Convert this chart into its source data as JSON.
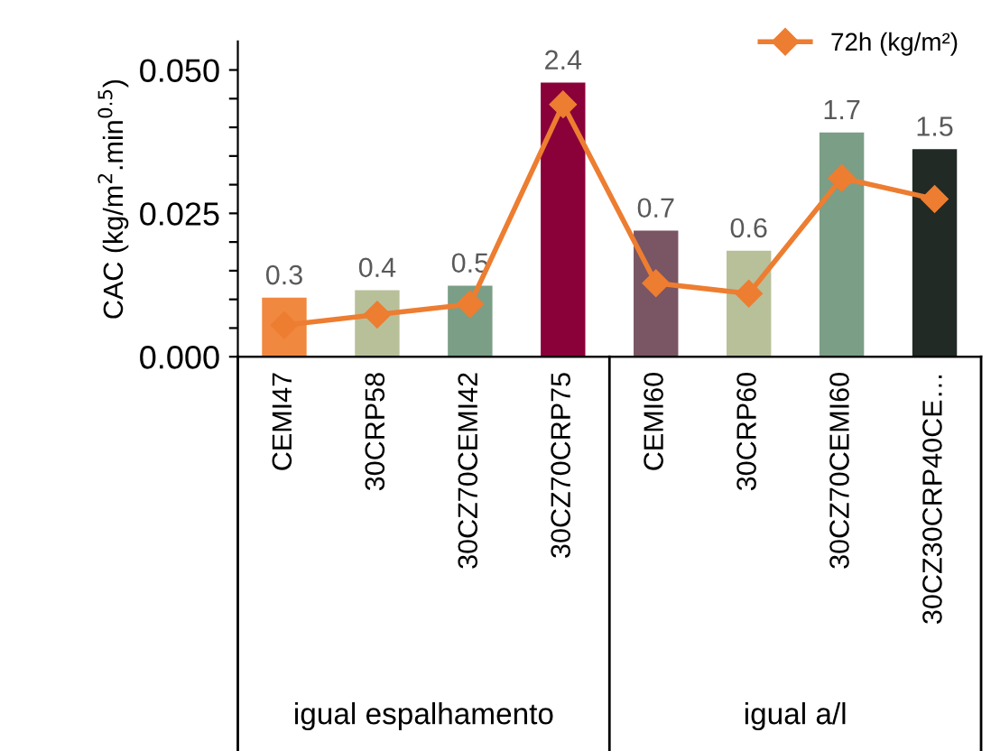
{
  "chart_data": {
    "type": "bar",
    "ylabel": "CAC (kg/m$^{2}$.min$^{0.5}$)",
    "categories": [
      "CEMI47",
      "30CRP58",
      "30CZ70CEMI42",
      "30CZ70CRP75",
      "CEMI60",
      "30CRP60",
      "30CZ70CEMI60",
      "30CZ30CRP40CE…"
    ],
    "series": [
      {
        "colors": [
          "#f0883f",
          "#b8c09a",
          "#7b9e86",
          "#8a0039",
          "#7a5563",
          "#b8c09a",
          "#7b9e86",
          "#212a24"
        ],
        "values": [
          0.0103,
          0.0116,
          0.0124,
          0.0478,
          0.022,
          0.0185,
          0.0391,
          0.0362
        ]
      },
      {
        "type": "line",
        "name": "72h (kg/m²)",
        "axis": "y2",
        "color": "#ed7d31",
        "values": [
          0.3,
          0.4,
          0.5,
          2.4,
          0.7,
          0.6,
          1.7,
          1.5
        ],
        "value_labels": [
          "0.3",
          "0.4",
          "0.5",
          "2.4",
          "0.7",
          "0.6",
          "1.7",
          "1.5"
        ]
      }
    ],
    "ylim": [
      0,
      0.055
    ],
    "yticks": [
      {
        "value": 0.0,
        "label": "0.000"
      },
      {
        "value": 0.005,
        "label": null
      },
      {
        "value": 0.01,
        "label": null
      },
      {
        "value": 0.015,
        "label": null
      },
      {
        "value": 0.02,
        "label": null
      },
      {
        "value": 0.025,
        "label": "0.025"
      },
      {
        "value": 0.03,
        "label": null
      },
      {
        "value": 0.035,
        "label": null
      },
      {
        "value": 0.04,
        "label": null
      },
      {
        "value": 0.045,
        "label": null
      },
      {
        "value": 0.05,
        "label": "0.050"
      }
    ],
    "y2lim": [
      0,
      3.0
    ],
    "marker": "diamond",
    "legend": "top right",
    "grid": false,
    "annotations": [
      "igual espalhamento",
      "igual a/l"
    ]
  }
}
